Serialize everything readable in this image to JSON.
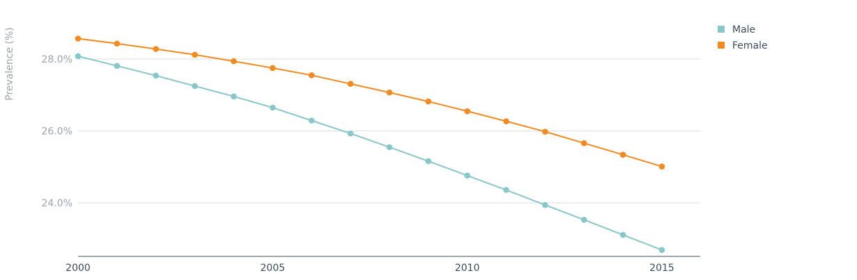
{
  "chart_data": {
    "type": "line",
    "title": "",
    "xlabel": "",
    "ylabel": "Prevalence (%)",
    "x": [
      2000,
      2001,
      2002,
      2003,
      2004,
      2005,
      2006,
      2007,
      2008,
      2009,
      2010,
      2011,
      2012,
      2013,
      2014,
      2015
    ],
    "series": [
      {
        "name": "Male",
        "color": "#88c7c9",
        "values": [
          28.08,
          27.81,
          27.54,
          27.25,
          26.96,
          26.65,
          26.29,
          25.93,
          25.55,
          25.16,
          24.76,
          24.36,
          23.94,
          23.53,
          23.11,
          22.69
        ]
      },
      {
        "name": "Female",
        "color": "#f28a1f",
        "values": [
          28.57,
          28.43,
          28.28,
          28.12,
          27.94,
          27.75,
          27.55,
          27.31,
          27.07,
          26.82,
          26.55,
          26.27,
          25.98,
          25.66,
          25.34,
          25.01
        ]
      }
    ],
    "x_ticks": [
      2000,
      2005,
      2010,
      2015
    ],
    "x_tick_labels": [
      "2000",
      "2005",
      "2010",
      "2015"
    ],
    "y_ticks": [
      24,
      26,
      28
    ],
    "y_tick_labels": [
      "24.0%",
      "26.0%",
      "28.0%"
    ],
    "xlim": [
      2000,
      2016
    ],
    "ylim": [
      22.5,
      29.0
    ],
    "grid": true,
    "legend_position": "top-right"
  }
}
